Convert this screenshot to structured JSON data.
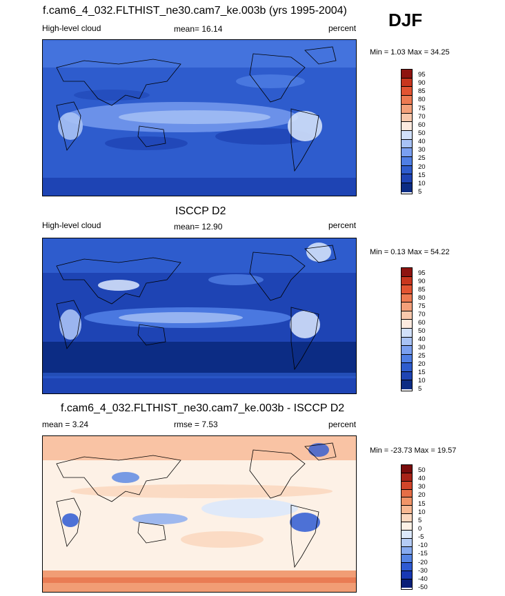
{
  "season": "DJF",
  "panels": [
    {
      "title": "f.cam6_4_032.FLTHIST_ne30.cam7_ke.003b (yrs 1995-2004)",
      "variable": "High-level cloud",
      "mean_label": "mean=  16.14",
      "units": "percent",
      "minmax": "Min =   1.03 Max =  34.25",
      "colors": [
        "#0c2c84",
        "#1e44b4",
        "#2e5ccd",
        "#4f7ee4",
        "#7a9ff0",
        "#a8c2f5",
        "#d1e0fa",
        "#fdeadf",
        "#f8c8ac",
        "#f3a07a",
        "#ed7a52",
        "#e25432",
        "#c8361e",
        "#8e1410"
      ],
      "tick_labels": [
        "95",
        "90",
        "85",
        "80",
        "75",
        "70",
        "60",
        "50",
        "40",
        "30",
        "25",
        "20",
        "15",
        "10",
        "5"
      ]
    },
    {
      "title": "ISCCP D2",
      "variable": "High-level cloud",
      "mean_label": "mean=  12.90",
      "units": "percent",
      "minmax": "Min =   0.13 Max =  54.22",
      "colors": [
        "#0c2c84",
        "#1e44b4",
        "#2e5ccd",
        "#4f7ee4",
        "#7a9ff0",
        "#a8c2f5",
        "#d1e0fa",
        "#fdeadf",
        "#f8c8ac",
        "#f3a07a",
        "#ed7a52",
        "#e25432",
        "#c8361e",
        "#8e1410"
      ],
      "tick_labels": [
        "95",
        "90",
        "85",
        "80",
        "75",
        "70",
        "60",
        "50",
        "40",
        "30",
        "25",
        "20",
        "15",
        "10",
        "5"
      ]
    },
    {
      "title": "f.cam6_4_032.FLTHIST_ne30.cam7_ke.003b - ISCCP D2",
      "mean_label": "mean =   3.24",
      "rmse_label": "rmse =   7.53",
      "units": "percent",
      "minmax": "Min = -23.73 Max =  19.57",
      "colors": [
        "#0a1f78",
        "#1838b4",
        "#2e5ad2",
        "#5584e4",
        "#86aaf0",
        "#b5ccf6",
        "#dce8fb",
        "#fdf1e6",
        "#fbd8c0",
        "#f7b893",
        "#f09468",
        "#e56e46",
        "#d0452a",
        "#a82318",
        "#7a0c0c"
      ],
      "tick_labels": [
        "50",
        "40",
        "30",
        "20",
        "15",
        "10",
        "5",
        "0",
        "-5",
        "-10",
        "-15",
        "-20",
        "-30",
        "-40",
        "-50"
      ]
    }
  ]
}
